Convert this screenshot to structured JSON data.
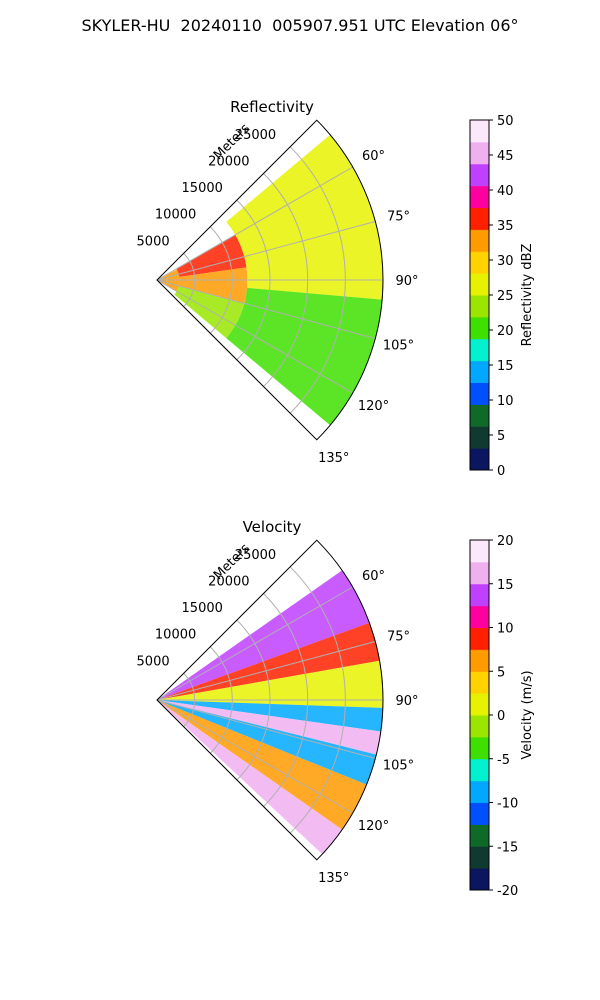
{
  "figure": {
    "title": "SKYLER-HU  20240110  005907.951 UTC Elevation 06°"
  },
  "chart_data": [
    {
      "type": "heatmap",
      "projection": "polar-sector",
      "title": "Reflectivity",
      "radial_label": "Meters",
      "radial_ticks": [
        "5000",
        "10000",
        "15000",
        "20000",
        "25000"
      ],
      "radial_tick_values": [
        5000,
        10000,
        15000,
        20000,
        25000
      ],
      "r_max": 30000,
      "angle_ticks": [
        "60°",
        "75°",
        "90°",
        "105°",
        "120°",
        "135°"
      ],
      "angle_tick_values": [
        60,
        75,
        90,
        105,
        120,
        135
      ],
      "theta_range": [
        45,
        135
      ],
      "grid": true,
      "colorbar": {
        "label": "Reflectivity dBZ",
        "ticks": [
          "0",
          "5",
          "10",
          "15",
          "20",
          "25",
          "30",
          "35",
          "40",
          "45",
          "50"
        ],
        "min": 0,
        "max": 50,
        "colors": [
          "#0b1560",
          "#103a30",
          "#0f6a2a",
          "#0050ff",
          "#00a8ff",
          "#00f0d0",
          "#3fe000",
          "#9ae600",
          "#e6f200",
          "#ffd200",
          "#ff9a00",
          "#ff2000",
          "#ff00a0",
          "#c040ff",
          "#f0b0f0",
          "#fbe8fb"
        ]
      },
      "field_bands": [
        {
          "r": [
            0,
            3000
          ],
          "theta": [
            62,
            120
          ],
          "value": 34
        },
        {
          "r": [
            3000,
            12000
          ],
          "theta": [
            60,
            82
          ],
          "value": 36
        },
        {
          "r": [
            3000,
            12000
          ],
          "theta": [
            82,
            105
          ],
          "value": 32
        },
        {
          "r": [
            3000,
            12000
          ],
          "theta": [
            105,
            130
          ],
          "value": 24
        },
        {
          "r": [
            12000,
            30000
          ],
          "theta": [
            50,
            95
          ],
          "value": 25
        },
        {
          "r": [
            12000,
            30000
          ],
          "theta": [
            95,
            130
          ],
          "value": 20
        }
      ]
    },
    {
      "type": "heatmap",
      "projection": "polar-sector",
      "title": "Velocity",
      "radial_label": "Meters",
      "radial_ticks": [
        "5000",
        "10000",
        "15000",
        "20000",
        "25000"
      ],
      "radial_tick_values": [
        5000,
        10000,
        15000,
        20000,
        25000
      ],
      "r_max": 30000,
      "angle_ticks": [
        "60°",
        "75°",
        "90°",
        "105°",
        "120°",
        "135°"
      ],
      "angle_tick_values": [
        60,
        75,
        90,
        105,
        120,
        135
      ],
      "theta_range": [
        45,
        135
      ],
      "grid": true,
      "colorbar": {
        "label": "Velocity (m/s)",
        "ticks": [
          "-20",
          "-15",
          "-10",
          "-5",
          "0",
          "5",
          "10",
          "15",
          "20"
        ],
        "min": -20,
        "max": 20,
        "colors": [
          "#0b1560",
          "#103a30",
          "#0f6a2a",
          "#0050ff",
          "#00a8ff",
          "#00f0d0",
          "#3fe000",
          "#9ae600",
          "#e6f200",
          "#ffd200",
          "#ff9a00",
          "#ff2000",
          "#ff00a0",
          "#c040ff",
          "#f0b0f0",
          "#fbe8fb"
        ]
      },
      "field_bands": [
        {
          "r": [
            0,
            30000
          ],
          "theta": [
            55,
            70
          ],
          "value": 14
        },
        {
          "r": [
            0,
            30000
          ],
          "theta": [
            70,
            80
          ],
          "value": 8
        },
        {
          "r": [
            0,
            30000
          ],
          "theta": [
            80,
            92
          ],
          "value": 0
        },
        {
          "r": [
            0,
            30000
          ],
          "theta": [
            92,
            98
          ],
          "value": -10
        },
        {
          "r": [
            0,
            30000
          ],
          "theta": [
            98,
            104
          ],
          "value": 15
        },
        {
          "r": [
            0,
            30000
          ],
          "theta": [
            104,
            112
          ],
          "value": -10
        },
        {
          "r": [
            0,
            30000
          ],
          "theta": [
            112,
            125
          ],
          "value": 6
        },
        {
          "r": [
            0,
            30000
          ],
          "theta": [
            125,
            133
          ],
          "value": 15
        }
      ]
    }
  ]
}
